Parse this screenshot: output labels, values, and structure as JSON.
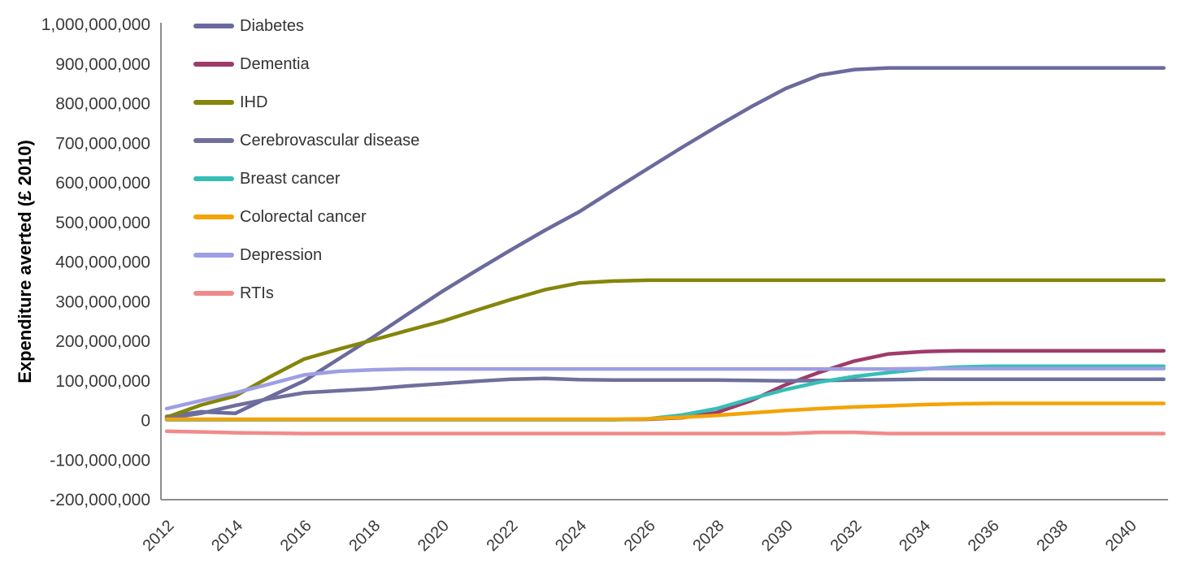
{
  "figure": {
    "background_color": "#ffffff",
    "axis_color": "#8e8e8e",
    "tick_label_color": "#3a3a3a",
    "legend_text_color": "#333333"
  },
  "chart_data": {
    "type": "line",
    "title": "",
    "xlabel": "",
    "ylabel": "Expenditure averted (£ 2010)",
    "ylim": [
      -200000000,
      1000000000
    ],
    "ytick_step": 100000000,
    "ytick_labels": [
      "1,000,000,000",
      "900,000,000",
      "800,000,000",
      "700,000,000",
      "600,000,000",
      "500,000,000",
      "400,000,000",
      "300,000,000",
      "200,000,000",
      "100,000,000",
      "0",
      "-100,000,000",
      "-200,000,000"
    ],
    "x": [
      2012,
      2013,
      2014,
      2015,
      2016,
      2017,
      2018,
      2019,
      2020,
      2021,
      2022,
      2023,
      2024,
      2025,
      2026,
      2027,
      2028,
      2029,
      2030,
      2031,
      2032,
      2033,
      2034,
      2035,
      2036,
      2037,
      2038,
      2039,
      2040,
      2041
    ],
    "xtick_labels": [
      "2012",
      "2014",
      "2016",
      "2018",
      "2020",
      "2022",
      "2024",
      "2026",
      "2028",
      "2030",
      "2032",
      "2034",
      "2036",
      "2038",
      "2040"
    ],
    "grid": false,
    "legend_position": "top-left-inside",
    "series": [
      {
        "name": "Diabetes",
        "slug": "diabetes",
        "color": "#6a6a9d",
        "values": [
          10000000,
          22000000,
          18000000,
          60000000,
          100000000,
          155000000,
          210000000,
          268000000,
          325000000,
          378000000,
          430000000,
          480000000,
          527000000,
          582000000,
          636000000,
          690000000,
          742000000,
          792000000,
          838000000,
          872000000,
          886000000,
          890000000,
          890000000,
          890000000,
          890000000,
          890000000,
          890000000,
          890000000,
          890000000,
          890000000
        ]
      },
      {
        "name": "Dementia",
        "slug": "dementia",
        "color": "#9e3b69",
        "values": [
          2000000,
          2000000,
          2000000,
          2000000,
          2000000,
          2000000,
          2000000,
          2000000,
          2000000,
          2000000,
          2000000,
          2000000,
          2000000,
          2000000,
          3000000,
          7000000,
          20000000,
          50000000,
          90000000,
          122000000,
          150000000,
          168000000,
          174000000,
          176000000,
          176000000,
          176000000,
          176000000,
          176000000,
          176000000,
          176000000
        ]
      },
      {
        "name": "IHD",
        "slug": "ihd",
        "color": "#85850c",
        "values": [
          8000000,
          39000000,
          62000000,
          110000000,
          155000000,
          180000000,
          203000000,
          227000000,
          250000000,
          278000000,
          305000000,
          330000000,
          347000000,
          352000000,
          354000000,
          354000000,
          354000000,
          354000000,
          354000000,
          354000000,
          354000000,
          354000000,
          354000000,
          354000000,
          354000000,
          354000000,
          354000000,
          354000000,
          354000000,
          354000000
        ]
      },
      {
        "name": "Cerebrovascular disease",
        "slug": "cerebrovascular-disease",
        "color": "#6f6f9d",
        "values": [
          5000000,
          18000000,
          38000000,
          55000000,
          70000000,
          75000000,
          80000000,
          87000000,
          93000000,
          99000000,
          104000000,
          106000000,
          103000000,
          102000000,
          102000000,
          102000000,
          102000000,
          101000000,
          100000000,
          101000000,
          102000000,
          103000000,
          104000000,
          104000000,
          104000000,
          104000000,
          104000000,
          104000000,
          104000000,
          104000000
        ]
      },
      {
        "name": "Breast cancer",
        "slug": "breast-cancer",
        "color": "#35beb7",
        "values": [
          2000000,
          2000000,
          2000000,
          2000000,
          2000000,
          2000000,
          2000000,
          2000000,
          2000000,
          2000000,
          2000000,
          2000000,
          2000000,
          2000000,
          4000000,
          14000000,
          30000000,
          55000000,
          78000000,
          97000000,
          111000000,
          121000000,
          130000000,
          135000000,
          137000000,
          137000000,
          137000000,
          137000000,
          137000000,
          137000000
        ]
      },
      {
        "name": "Colorectal cancer",
        "slug": "colorectal-cancer",
        "color": "#f4a306",
        "values": [
          3000000,
          3000000,
          3000000,
          3000000,
          3000000,
          3000000,
          3000000,
          3000000,
          3000000,
          3000000,
          3000000,
          3000000,
          3000000,
          3000000,
          4000000,
          8000000,
          13000000,
          19000000,
          25000000,
          30000000,
          34000000,
          37000000,
          40000000,
          42000000,
          43000000,
          43000000,
          43000000,
          43000000,
          43000000,
          43000000
        ]
      },
      {
        "name": "Depression",
        "slug": "depression",
        "color": "#9e9ee4",
        "values": [
          30000000,
          50000000,
          70000000,
          92000000,
          115000000,
          124000000,
          128000000,
          130000000,
          130000000,
          130000000,
          130000000,
          130000000,
          130000000,
          130000000,
          130000000,
          130000000,
          130000000,
          130000000,
          130000000,
          130000000,
          130000000,
          130000000,
          131000000,
          131000000,
          131000000,
          131000000,
          131000000,
          131000000,
          131000000,
          131000000
        ]
      },
      {
        "name": "RTIs",
        "slug": "rtis",
        "color": "#f08a8a",
        "values": [
          -27000000,
          -29000000,
          -31000000,
          -32000000,
          -33000000,
          -33000000,
          -33000000,
          -33000000,
          -33000000,
          -33000000,
          -33000000,
          -33000000,
          -33000000,
          -33000000,
          -33000000,
          -33000000,
          -33000000,
          -33000000,
          -33000000,
          -30000000,
          -30000000,
          -33000000,
          -33000000,
          -33000000,
          -33000000,
          -33000000,
          -33000000,
          -33000000,
          -33000000,
          -33000000
        ]
      }
    ]
  }
}
